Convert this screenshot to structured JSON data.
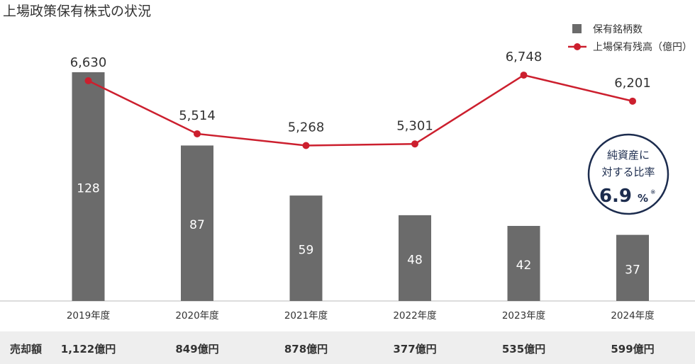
{
  "chart_data": {
    "type": "bar",
    "title": "上場政策保有株式の状況",
    "categories": [
      "2019年度",
      "2020年度",
      "2021年度",
      "2022年度",
      "2023年度",
      "2024年度"
    ],
    "series": [
      {
        "name": "保有銘柄数",
        "type": "bar",
        "color": "#6b6b6b",
        "values": [
          128,
          87,
          59,
          48,
          42,
          37
        ]
      },
      {
        "name": "上場保有残高（億円）",
        "type": "line",
        "color": "#cc1f2e",
        "values": [
          6630,
          5514,
          5268,
          5301,
          6748,
          6201
        ]
      }
    ],
    "line_value_labels": [
      "6,630",
      "5,514",
      "5,268",
      "5,301",
      "6,748",
      "6,201"
    ],
    "bar_value_labels": [
      "128",
      "87",
      "59",
      "48",
      "42",
      "37"
    ],
    "bar_axis_range": [
      0,
      140
    ],
    "line_axis_range": [
      2000,
      7200
    ],
    "legend_position": "top-right",
    "grid": false,
    "sales_row": {
      "label": "売却額",
      "values": [
        "1,122億円",
        "849億円",
        "878億円",
        "377億円",
        "535億円",
        "599億円"
      ]
    },
    "badge": {
      "line1": "純資産に",
      "line2": "対する比率",
      "value": "6.9",
      "unit": "%",
      "note": "※",
      "border_color": "#1c2c4e"
    }
  }
}
